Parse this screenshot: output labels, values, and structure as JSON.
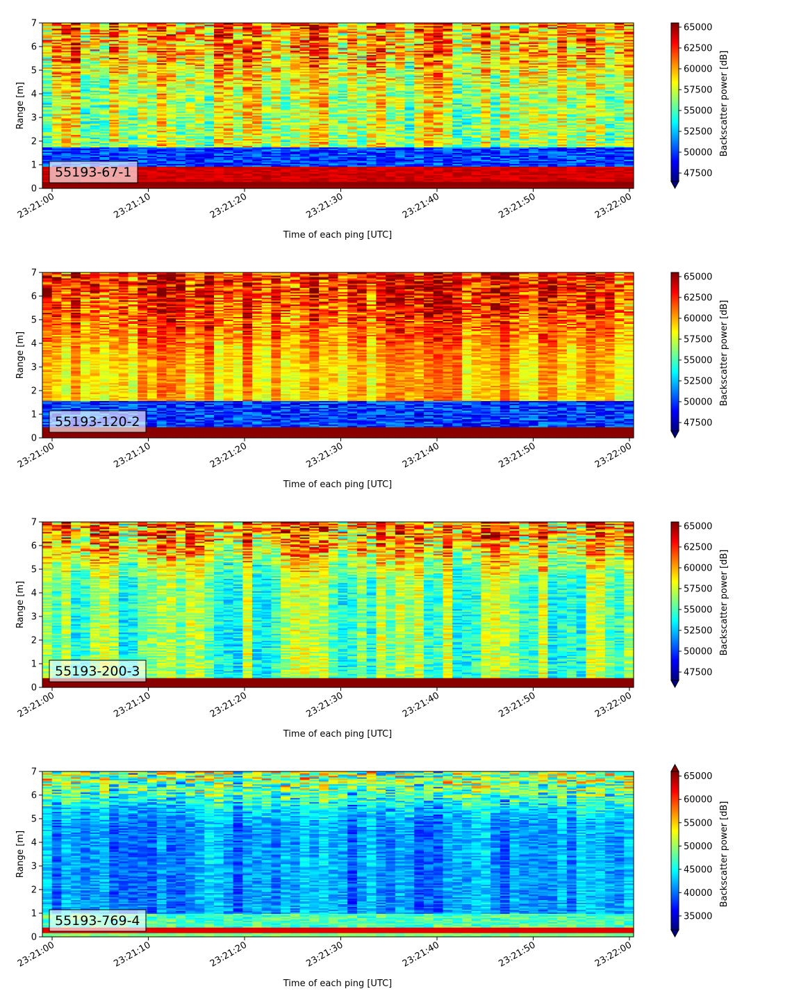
{
  "chart_data": [
    {
      "type": "heatmap",
      "label": "55193-67-1",
      "xlabel": "Time of each ping [UTC]",
      "ylabel": "Range [m]",
      "x_range": [
        "23:21:00",
        "23:22:00"
      ],
      "xticks": [
        "23:21:00",
        "23:21:10",
        "23:21:20",
        "23:21:30",
        "23:21:40",
        "23:21:50",
        "23:22:00"
      ],
      "ylim": [
        0,
        7
      ],
      "yticks": [
        0,
        1,
        2,
        3,
        4,
        5,
        6,
        7
      ],
      "colorbar": {
        "label": "Backscatter power [dB]",
        "range": [
          46500,
          65500
        ],
        "ticks": [
          47500,
          50000,
          52500,
          55000,
          57500,
          60000,
          62500,
          65000
        ],
        "extend_low": true,
        "extend_high": false,
        "colormap": "jet"
      },
      "pattern": "strong red bottom band below ~1 m, blue band ~1-1.7 m, mixed speckle above with frequent dark red cells near top"
    },
    {
      "type": "heatmap",
      "label": "55193-120-2",
      "xlabel": "Time of each ping [UTC]",
      "ylabel": "Range [m]",
      "x_range": [
        "23:21:00",
        "23:22:00"
      ],
      "xticks": [
        "23:21:00",
        "23:21:10",
        "23:21:20",
        "23:21:30",
        "23:21:40",
        "23:21:50",
        "23:22:00"
      ],
      "ylim": [
        0,
        7
      ],
      "yticks": [
        0,
        1,
        2,
        3,
        4,
        5,
        6,
        7
      ],
      "colorbar": {
        "label": "Backscatter power [dB]",
        "range": [
          46500,
          65500
        ],
        "ticks": [
          47500,
          50000,
          52500,
          55000,
          57500,
          60000,
          62500,
          65000
        ],
        "extend_low": true,
        "extend_high": false,
        "colormap": "jet"
      },
      "pattern": "thin red bottom band below ~0.4 m, blue band ~0.5-1.5 m on left, mostly orange/red speckle above"
    },
    {
      "type": "heatmap",
      "label": "55193-200-3",
      "xlabel": "Time of each ping [UTC]",
      "ylabel": "Range [m]",
      "x_range": [
        "23:21:00",
        "23:22:00"
      ],
      "xticks": [
        "23:21:00",
        "23:21:10",
        "23:21:20",
        "23:21:30",
        "23:21:40",
        "23:21:50",
        "23:22:00"
      ],
      "ylim": [
        0,
        7
      ],
      "yticks": [
        0,
        1,
        2,
        3,
        4,
        5,
        6,
        7
      ],
      "colorbar": {
        "label": "Backscatter power [dB]",
        "range": [
          46500,
          65500
        ],
        "ticks": [
          47500,
          50000,
          52500,
          55000,
          57500,
          60000,
          62500,
          65000
        ],
        "extend_low": true,
        "extend_high": false,
        "colormap": "jet"
      },
      "pattern": "thin red bottom band below ~0.4 m, cyan/green speckle in middle, red cells near top"
    },
    {
      "type": "heatmap",
      "label": "55193-769-4",
      "xlabel": "Time of each ping [UTC]",
      "ylabel": "Range [m]",
      "x_range": [
        "23:21:00",
        "23:22:00"
      ],
      "xticks": [
        "23:21:00",
        "23:21:10",
        "23:21:20",
        "23:21:30",
        "23:21:40",
        "23:21:50",
        "23:22:00"
      ],
      "ylim": [
        0,
        7
      ],
      "yticks": [
        0,
        1,
        2,
        3,
        4,
        5,
        6,
        7
      ],
      "colorbar": {
        "label": "Backscatter power [dB]",
        "range": [
          32000,
          66000
        ],
        "ticks": [
          35000,
          40000,
          45000,
          50000,
          55000,
          60000,
          65000
        ],
        "extend_low": true,
        "extend_high": true,
        "colormap": "jet"
      },
      "pattern": "thin orange/red line near 0.3 m, mostly blue body, green/cyan speckle near top"
    }
  ]
}
